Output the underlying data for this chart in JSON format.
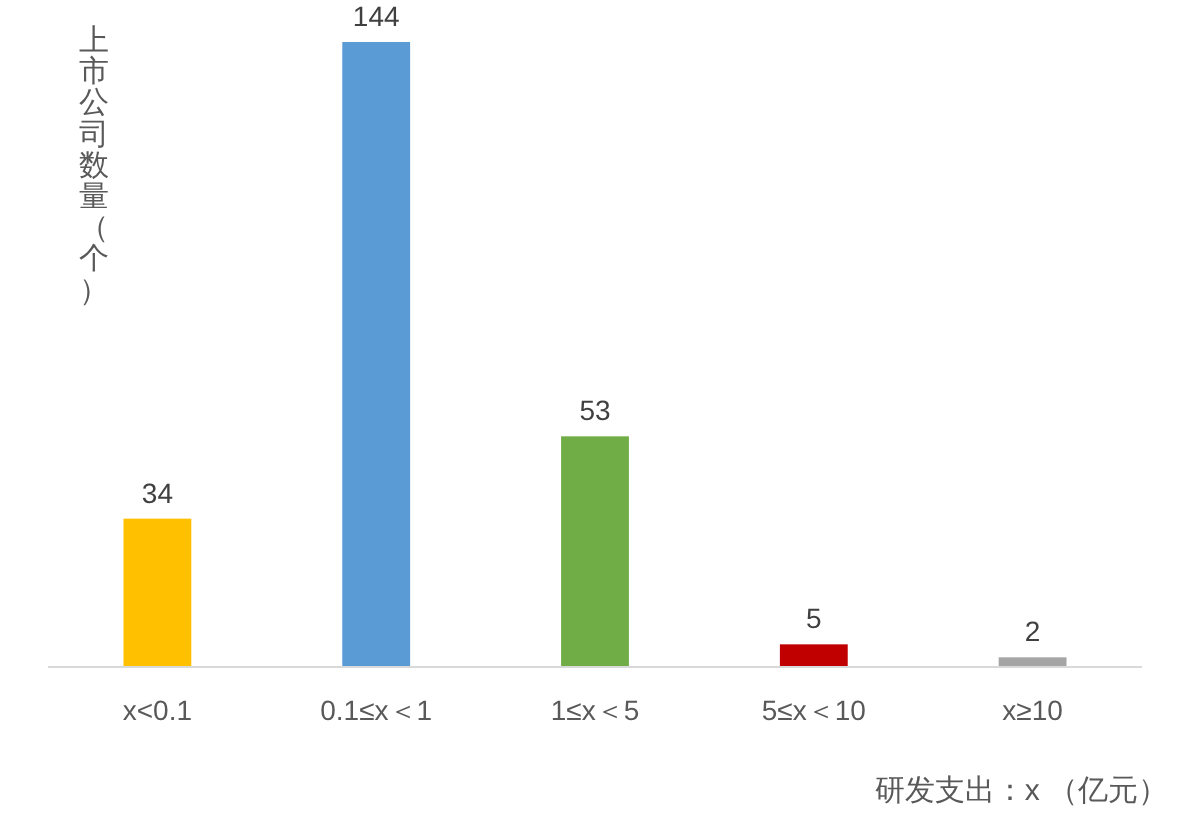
{
  "chart_data": {
    "type": "bar",
    "ylabel": "上市公司数量（个）",
    "xlabel": "研发支出：x （亿元）",
    "categories": [
      "x<0.1",
      "0.1≤x＜1",
      "1≤x＜5",
      "5≤x＜10",
      "x≥10"
    ],
    "values": [
      34,
      144,
      53,
      5,
      2
    ],
    "colors": [
      "#ffc000",
      "#5b9bd5",
      "#70ad47",
      "#c00000",
      "#a5a5a5"
    ],
    "data_labels": true
  }
}
